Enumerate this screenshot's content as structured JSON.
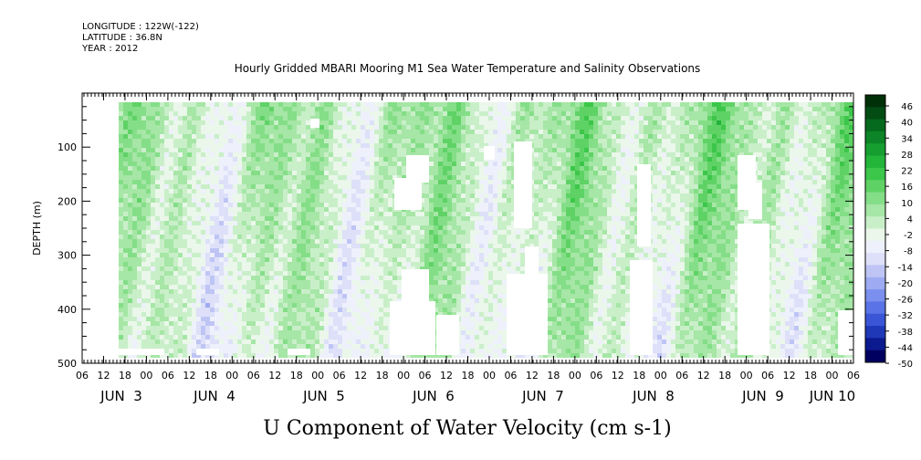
{
  "header": {
    "longitude": "LONGITUDE : 122W(-122)",
    "latitude": "LATITUDE : 36.8N",
    "year": "YEAR : 2012"
  },
  "colors": {
    "missing": "#ffffff",
    "scale": [
      "#000060",
      "#0b1a8f",
      "#1f38b8",
      "#3a55d6",
      "#5a73e6",
      "#7b8fee",
      "#9eabf2",
      "#bec5f5",
      "#dde0f8",
      "#eef0fb",
      "#eaf7ea",
      "#c9efc9",
      "#a6e6a6",
      "#84de87",
      "#5fd266",
      "#3cc64a",
      "#23b43a",
      "#169f30",
      "#0c8427",
      "#066a1e",
      "#024c13",
      "#003008"
    ]
  },
  "chart_data": {
    "type": "heatmap",
    "title": "Hourly Gridded MBARI Mooring M1 Sea Water Temperature and Salinity Observations",
    "xlabel": "U Component of Water Velocity (cm s-1)",
    "ylabel": "DEPTH (m)",
    "ylim": [
      500,
      0
    ],
    "y_ticks": [
      100,
      200,
      300,
      400,
      500
    ],
    "x_hour_labels": [
      "06",
      "12",
      "18",
      "00",
      "06",
      "12",
      "18",
      "00",
      "06",
      "12",
      "18",
      "00",
      "06",
      "12",
      "18",
      "00",
      "06",
      "12",
      "18",
      "00",
      "06",
      "12",
      "18",
      "00",
      "06",
      "12",
      "18",
      "00",
      "06",
      "12",
      "18",
      "00",
      "06",
      "12",
      "18",
      "00",
      "06"
    ],
    "x_day_labels": [
      "JUN  3",
      "JUN  4",
      "JUN  5",
      "JUN  6",
      "JUN  7",
      "JUN  8",
      "JUN  9",
      "JUN 10"
    ],
    "colorbar_labels": [
      "46",
      "40",
      "34",
      "28",
      "22",
      "16",
      "10",
      "4",
      "-2",
      "-8",
      "-14",
      "-20",
      "-26",
      "-32",
      "-38",
      "-44",
      "-50"
    ],
    "value_range": [
      -50,
      50
    ],
    "grid": false
  }
}
